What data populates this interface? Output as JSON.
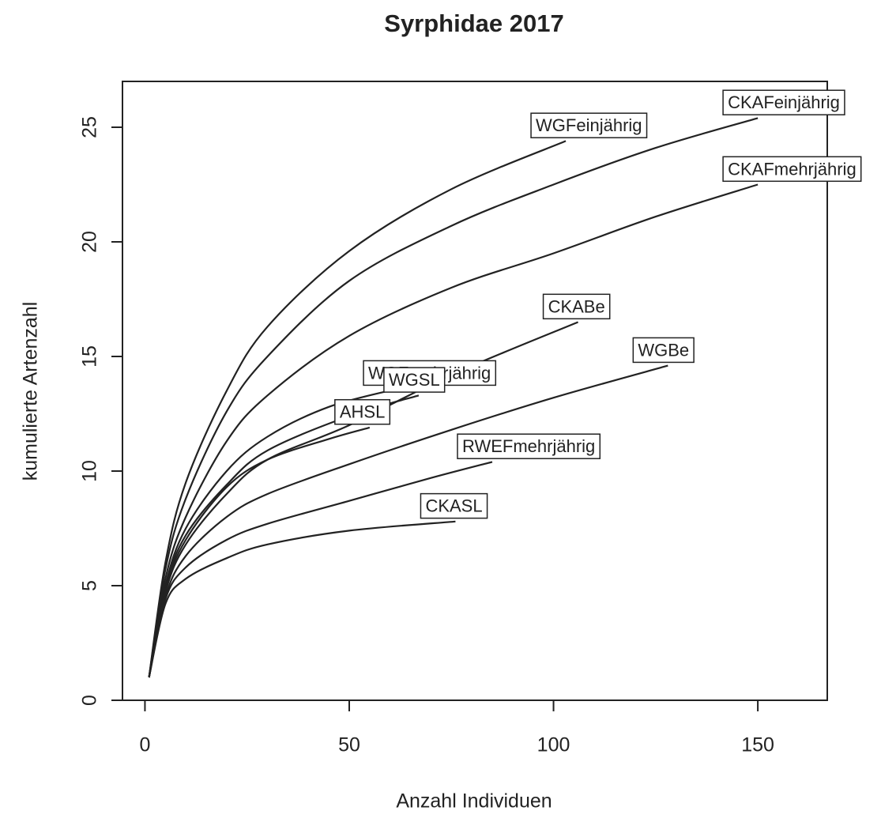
{
  "chart_data": {
    "type": "line",
    "title": "Syrphidae 2017",
    "x_label": "Anzahl Individuen",
    "y_label": "kumulierte Artenzahl",
    "xlim": [
      -5.5,
      167
    ],
    "ylim": [
      0,
      27
    ],
    "xticks": [
      0,
      50,
      100,
      150
    ],
    "yticks": [
      0,
      5,
      10,
      15,
      20,
      25
    ],
    "color": "#222222",
    "series": [
      {
        "name": "WGFeinjährig",
        "x": [
          1,
          5,
          10,
          20,
          30,
          50,
          75,
          103
        ],
        "values": [
          1,
          6,
          9.5,
          13.5,
          16.3,
          19.6,
          22.3,
          24.4
        ]
      },
      {
        "name": "CKAFeinjährig",
        "x": [
          1,
          5,
          10,
          20,
          30,
          50,
          75,
          100,
          125,
          150
        ],
        "values": [
          1,
          5.7,
          8.8,
          12.6,
          15,
          18.3,
          20.7,
          22.5,
          24.1,
          25.4
        ]
      },
      {
        "name": "CKAFmehrjährig",
        "x": [
          1,
          5,
          10,
          20,
          30,
          50,
          75,
          100,
          125,
          150
        ],
        "values": [
          1,
          5.3,
          8,
          11.3,
          13.3,
          15.9,
          18,
          19.5,
          21.1,
          22.5
        ]
      },
      {
        "name": "WGFmehrjährig",
        "x": [
          1,
          5,
          10,
          20,
          30,
          45,
          62
        ],
        "values": [
          1,
          5,
          7.5,
          10,
          11.5,
          12.8,
          13.6
        ]
      },
      {
        "name": "WGSL",
        "x": [
          1,
          5,
          10,
          20,
          30,
          50,
          67
        ],
        "values": [
          1,
          4.9,
          7.2,
          9.4,
          10.9,
          12.4,
          13.3
        ]
      },
      {
        "name": "AHSL",
        "x": [
          1,
          5,
          10,
          20,
          30,
          45,
          55
        ],
        "values": [
          1,
          4.8,
          7,
          9.3,
          10.5,
          11.4,
          11.9
        ]
      },
      {
        "name": "CKABe",
        "x": [
          1,
          5,
          10,
          20,
          30,
          50,
          75,
          106
        ],
        "values": [
          1,
          4.7,
          6.8,
          9,
          10.5,
          12,
          14.2,
          16.5
        ]
      },
      {
        "name": "WGBe",
        "x": [
          1,
          5,
          10,
          20,
          30,
          50,
          75,
          100,
          128
        ],
        "values": [
          1,
          4.5,
          6.3,
          8,
          9,
          10.3,
          11.8,
          13.2,
          14.6
        ]
      },
      {
        "name": "RWEFmehrjährig",
        "x": [
          1,
          5,
          10,
          20,
          30,
          50,
          70,
          85
        ],
        "values": [
          1,
          4.4,
          5.8,
          7,
          7.7,
          8.7,
          9.7,
          10.4
        ]
      },
      {
        "name": "CKASL",
        "x": [
          1,
          5,
          10,
          20,
          30,
          50,
          76
        ],
        "values": [
          1,
          4.2,
          5.3,
          6.2,
          6.8,
          7.4,
          7.8
        ]
      }
    ]
  }
}
